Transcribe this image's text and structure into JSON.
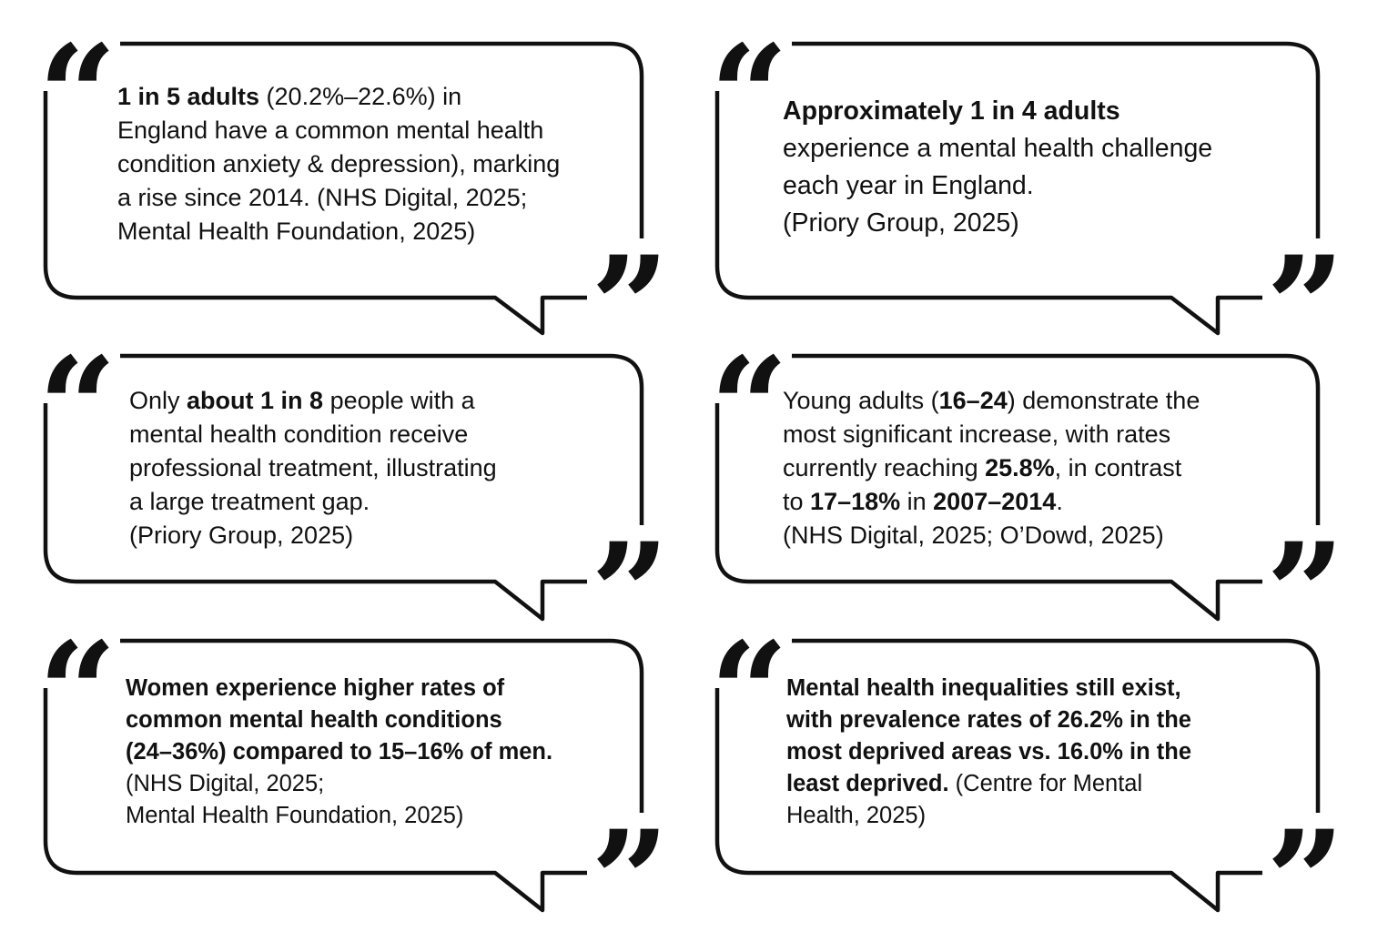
{
  "quotes": {
    "open_glyph": "“",
    "close_glyph": "”"
  },
  "bubbles": [
    {
      "lines": [
        {
          "bold": "1 in 5 adults",
          "text": " (20.2%–22.6%) in"
        },
        {
          "text": "England have a common mental health"
        },
        {
          "text": "condition anxiety & depression), marking"
        },
        {
          "text": "a rise since 2014. (NHS Digital, 2025;"
        },
        {
          "text": "Mental Health Foundation, 2025)"
        }
      ]
    },
    {
      "lines": [
        {
          "bold": "Approximately 1 in 4 adults"
        },
        {
          "text": "experience a mental health challenge"
        },
        {
          "text": "each year in England."
        },
        {
          "text": "(Priory Group, 2025)"
        }
      ]
    },
    {
      "lines": [
        {
          "pre": "Only ",
          "bold": "about 1 in 8",
          "text": " people with a"
        },
        {
          "text": "mental health condition receive"
        },
        {
          "text": "professional treatment, illustrating"
        },
        {
          "text": "a large treatment gap."
        },
        {
          "text": "(Priory Group, 2025)"
        }
      ]
    },
    {
      "lines": [
        {
          "pre": "Young adults (",
          "bold": "16–24",
          "text": ") demonstrate the"
        },
        {
          "text": "most significant increase, with rates"
        },
        {
          "pre": "currently reaching ",
          "bold": "25.8%",
          "text": ", in contrast"
        },
        {
          "pre": "to ",
          "bold": "17–18%",
          "mid": " in ",
          "bold2": "2007–2014",
          "text": "."
        },
        {
          "text": "(NHS Digital, 2025; O’Dowd, 2025)"
        }
      ]
    },
    {
      "lines": [
        {
          "bold": "Women experience higher rates of"
        },
        {
          "bold": "common mental health conditions"
        },
        {
          "bold": "(24–36%) compared to 15–16% of men."
        },
        {
          "text": "(NHS Digital, 2025;"
        },
        {
          "text": "Mental Health Foundation, 2025)"
        }
      ]
    },
    {
      "lines": [
        {
          "bold": "Mental health inequalities still exist,"
        },
        {
          "bold": "with prevalence rates of 26.2% in the"
        },
        {
          "bold": "most deprived areas vs. 16.0% in the"
        },
        {
          "bold": "least deprived.",
          "text": " (Centre for Mental"
        },
        {
          "text": "Health, 2025)"
        }
      ]
    }
  ],
  "colors": {
    "stroke": "#111111",
    "background": "#ffffff"
  }
}
